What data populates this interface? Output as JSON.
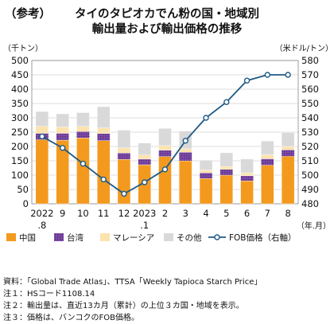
{
  "title": {
    "tag": "（参考）",
    "line1": "タイのタピオカでん粉の国・地域別",
    "line2": "輸出量および輸出価格の推移"
  },
  "notes": [
    "資料：「Global Trade Atlas」、TTSA「Weekly Tapioca Starch Price」",
    "注１：HSコード1108.14",
    "注２：輸出量は、直近13カ月（累計）の上位３カ国・地域を表示。",
    "注３：価格は、バンコクのFOB価格。"
  ],
  "chart_data": {
    "type": "bar",
    "stacked": true,
    "categories": [
      "2022\n.8",
      "9",
      "10",
      "11",
      "12",
      "2023\n.1",
      "2",
      "3",
      "4",
      "5",
      "6",
      "7",
      "8"
    ],
    "x_unit": "（年.月）",
    "left_axis": {
      "unit": "（千トン）",
      "ylim": [
        0,
        500
      ],
      "ticks": [
        0,
        50,
        100,
        150,
        200,
        250,
        300,
        350,
        400,
        450,
        500
      ]
    },
    "right_axis": {
      "unit": "（米ドル/トン）",
      "ylim": [
        480,
        580
      ],
      "ticks": [
        480,
        490,
        500,
        510,
        520,
        530,
        540,
        550,
        560,
        570,
        580
      ]
    },
    "series": [
      {
        "name": "中国",
        "color": "#F39A1E",
        "values": [
          224,
          222,
          230,
          220,
          155,
          136,
          165,
          150,
          88,
          100,
          80,
          135,
          166
        ]
      },
      {
        "name": "台湾",
        "color": "#7D4BA6",
        "values": [
          22,
          24,
          22,
          25,
          22,
          20,
          22,
          30,
          20,
          20,
          18,
          22,
          22
        ]
      },
      {
        "name": "マレーシア",
        "color": "#FCE3AE",
        "values": [
          24,
          22,
          18,
          20,
          18,
          14,
          16,
          12,
          10,
          10,
          10,
          14,
          12
        ]
      },
      {
        "name": "その他",
        "color": "#D9D9D9",
        "values": [
          52,
          46,
          48,
          74,
          62,
          42,
          60,
          62,
          34,
          48,
          48,
          48,
          48
        ]
      }
    ],
    "line": {
      "name": "FOB価格（右軸）",
      "color": "#1F5A85",
      "axis": "right",
      "values": [
        527,
        519,
        508,
        497,
        487,
        495,
        504,
        524,
        540,
        551,
        566,
        570,
        570
      ]
    },
    "grid": true,
    "legend_position": "bottom"
  }
}
